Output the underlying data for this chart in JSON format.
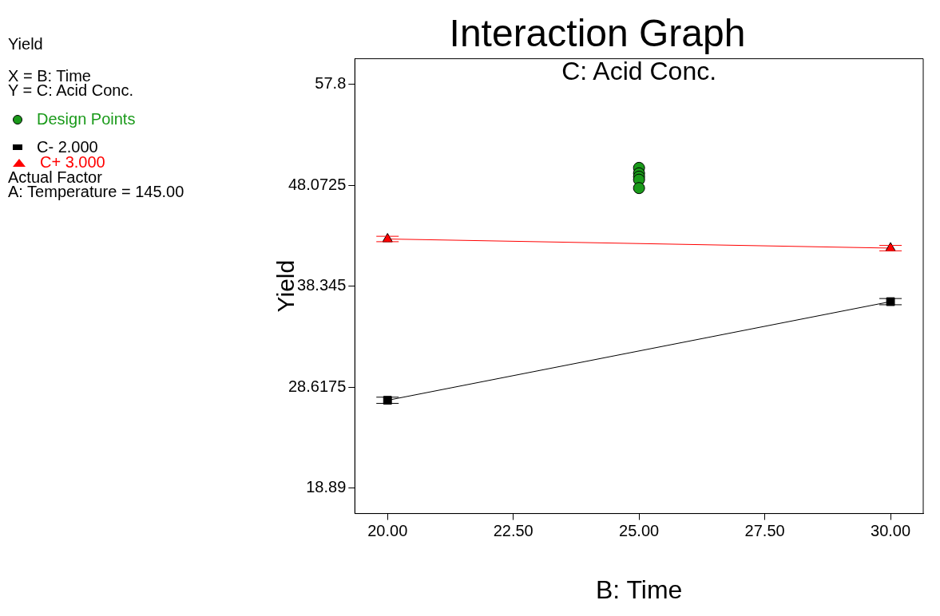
{
  "chart_data": {
    "type": "line",
    "title": "Interaction Graph",
    "subtitle": "C: Acid Conc.",
    "xlabel": "B: Time",
    "ylabel": "Yield",
    "annotations": [
      "Yield",
      "X = B: Time",
      "Y = C: Acid Conc.",
      "Actual Factor",
      "A: Temperature = 145.00"
    ],
    "series": [
      {
        "name": "Design Points",
        "type": "scatter",
        "color": "#1a9a1a",
        "marker": "circle",
        "x": [
          25,
          25,
          25,
          25,
          25
        ],
        "values": [
          49.75,
          49.22,
          48.9,
          48.61,
          47.8
        ]
      },
      {
        "name": "C- 2.000",
        "type": "line",
        "color": "#000000",
        "marker": "square",
        "x": [
          20,
          30
        ],
        "values": [
          27.34,
          36.85
        ],
        "errors": [
          0.3,
          0.3
        ]
      },
      {
        "name": "C+ 3.000",
        "type": "line",
        "color": "#ff0000",
        "marker": "triangle",
        "x": [
          20,
          30
        ],
        "values": [
          42.89,
          42.01
        ],
        "errors": [
          0.26,
          0.26
        ]
      }
    ],
    "xlim": [
      19.35,
      30.65
    ],
    "xticks": [
      {
        "value": 20,
        "label": "20.00"
      },
      {
        "value": 22.5,
        "label": "22.50"
      },
      {
        "value": 25,
        "label": "25.00"
      },
      {
        "value": 27.5,
        "label": "27.50"
      },
      {
        "value": 30,
        "label": "30.00"
      }
    ],
    "ylim": [
      16.42,
      60.27
    ],
    "yticks": [
      18.89,
      28.6175,
      38.345,
      48.0725,
      57.8
    ],
    "grid": false,
    "legend": "left"
  }
}
